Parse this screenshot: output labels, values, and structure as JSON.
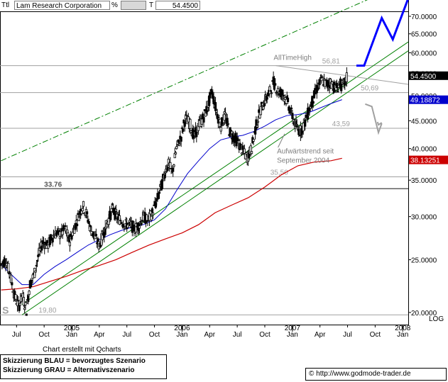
{
  "toolbar": {
    "ttl_label": "Ttl",
    "title": "Lam Research Corporation",
    "percent_label": "%",
    "t_label": "T",
    "last_value": "54.4500"
  },
  "scale_label": "LOG",
  "created_with": "Chart erstellt mit Qcharts",
  "legend": {
    "line1": "Skizzierung BLAU = bevorzugtes Szenario",
    "line2": "Skizzierung GRAU = Alternativszenario"
  },
  "copyright": "© http://www.godmode-trader.de",
  "colors": {
    "candle": "#000000",
    "ma_blue": "#0000cc",
    "ma_red": "#cc0000",
    "trend": "#008000",
    "scenario_blue": "#0000ff",
    "scenario_gray": "#a0a0a0",
    "grid": "#c8c8c8"
  },
  "chart_data": {
    "type": "candlestick",
    "yscale": "log",
    "ylim": [
      19.0,
      75.0
    ],
    "y_ticks": [
      "70.0000",
      "65.0000",
      "60.0000",
      "55.0000",
      "50.0000",
      "45.0000",
      "40.0000",
      "35.0000",
      "30.0000",
      "25.0000",
      "20.0000"
    ],
    "x_ticks": [
      {
        "t": 2004.5,
        "label": "Jul",
        "year": ""
      },
      {
        "t": 2004.75,
        "label": "Oct",
        "year": ""
      },
      {
        "t": 2005.0,
        "label": "Jan",
        "year": "2005"
      },
      {
        "t": 2005.25,
        "label": "Apr",
        "year": ""
      },
      {
        "t": 2005.5,
        "label": "Jul",
        "year": ""
      },
      {
        "t": 2005.75,
        "label": "Oct",
        "year": ""
      },
      {
        "t": 2006.0,
        "label": "Jan",
        "year": "2006"
      },
      {
        "t": 2006.25,
        "label": "Apr",
        "year": ""
      },
      {
        "t": 2006.5,
        "label": "Jul",
        "year": ""
      },
      {
        "t": 2006.75,
        "label": "Oct",
        "year": ""
      },
      {
        "t": 2007.0,
        "label": "Jan",
        "year": "2007"
      },
      {
        "t": 2007.25,
        "label": "Apr",
        "year": ""
      },
      {
        "t": 2007.5,
        "label": "Jul",
        "year": ""
      },
      {
        "t": 2007.75,
        "label": "Oct",
        "year": ""
      },
      {
        "t": 2008.0,
        "label": "Jan",
        "year": "2008"
      }
    ],
    "x_range": [
      2004.35,
      2008.05
    ],
    "price_path": [
      [
        2004.36,
        24.5
      ],
      [
        2004.4,
        25.0
      ],
      [
        2004.44,
        23.5
      ],
      [
        2004.48,
        21.5
      ],
      [
        2004.52,
        20.5
      ],
      [
        2004.55,
        21.5
      ],
      [
        2004.59,
        20.2
      ],
      [
        2004.62,
        22.5
      ],
      [
        2004.66,
        23.5
      ],
      [
        2004.7,
        25.5
      ],
      [
        2004.74,
        27.0
      ],
      [
        2004.78,
        26.5
      ],
      [
        2004.82,
        27.5
      ],
      [
        2004.86,
        28.0
      ],
      [
        2004.9,
        27.8
      ],
      [
        2004.94,
        28.5
      ],
      [
        2004.98,
        27.0
      ],
      [
        2005.02,
        28.5
      ],
      [
        2005.06,
        30.0
      ],
      [
        2005.1,
        31.5
      ],
      [
        2005.13,
        30.5
      ],
      [
        2005.17,
        28.5
      ],
      [
        2005.21,
        27.5
      ],
      [
        2005.25,
        26.5
      ],
      [
        2005.29,
        28.0
      ],
      [
        2005.33,
        29.5
      ],
      [
        2005.37,
        31.0
      ],
      [
        2005.41,
        30.0
      ],
      [
        2005.45,
        29.5
      ],
      [
        2005.49,
        29.0
      ],
      [
        2005.53,
        29.0
      ],
      [
        2005.57,
        28.5
      ],
      [
        2005.61,
        29.0
      ],
      [
        2005.65,
        30.0
      ],
      [
        2005.69,
        29.5
      ],
      [
        2005.73,
        30.5
      ],
      [
        2005.77,
        32.0
      ],
      [
        2005.81,
        34.0
      ],
      [
        2005.85,
        36.5
      ],
      [
        2005.88,
        37.5
      ],
      [
        2005.91,
        36.0
      ],
      [
        2005.95,
        40.0
      ],
      [
        2005.99,
        42.0
      ],
      [
        2006.03,
        45.5
      ],
      [
        2006.07,
        44.5
      ],
      [
        2006.11,
        42.0
      ],
      [
        2006.15,
        44.0
      ],
      [
        2006.19,
        45.5
      ],
      [
        2006.23,
        47.5
      ],
      [
        2006.27,
        51.0
      ],
      [
        2006.31,
        47.0
      ],
      [
        2006.35,
        44.0
      ],
      [
        2006.39,
        46.0
      ],
      [
        2006.43,
        43.0
      ],
      [
        2006.47,
        42.0
      ],
      [
        2006.51,
        41.0
      ],
      [
        2006.55,
        39.5
      ],
      [
        2006.59,
        38.5
      ],
      [
        2006.63,
        40.0
      ],
      [
        2006.67,
        44.0
      ],
      [
        2006.71,
        47.0
      ],
      [
        2006.75,
        49.0
      ],
      [
        2006.79,
        50.5
      ],
      [
        2006.83,
        53.0
      ],
      [
        2006.87,
        51.0
      ],
      [
        2006.91,
        50.5
      ],
      [
        2006.95,
        49.0
      ],
      [
        2006.99,
        46.5
      ],
      [
        2007.03,
        44.0
      ],
      [
        2007.07,
        43.0
      ],
      [
        2007.11,
        44.5
      ],
      [
        2007.15,
        47.0
      ],
      [
        2007.19,
        49.5
      ],
      [
        2007.23,
        52.0
      ],
      [
        2007.27,
        53.5
      ],
      [
        2007.31,
        52.5
      ],
      [
        2007.35,
        53.0
      ],
      [
        2007.39,
        51.5
      ],
      [
        2007.43,
        52.5
      ],
      [
        2007.46,
        52.0
      ],
      [
        2007.5,
        54.45
      ]
    ],
    "ma_blue": [
      [
        2004.36,
        24.5
      ],
      [
        2004.45,
        23.5
      ],
      [
        2004.55,
        22.5
      ],
      [
        2004.65,
        22.5
      ],
      [
        2004.75,
        23.5
      ],
      [
        2004.85,
        24.3
      ],
      [
        2004.95,
        25.0
      ],
      [
        2005.05,
        25.8
      ],
      [
        2005.15,
        26.6
      ],
      [
        2005.25,
        27.2
      ],
      [
        2005.35,
        27.8
      ],
      [
        2005.45,
        28.3
      ],
      [
        2005.55,
        28.7
      ],
      [
        2005.65,
        29.0
      ],
      [
        2005.75,
        29.6
      ],
      [
        2005.85,
        31.0
      ],
      [
        2005.95,
        33.5
      ],
      [
        2006.05,
        36.0
      ],
      [
        2006.15,
        38.0
      ],
      [
        2006.25,
        40.0
      ],
      [
        2006.35,
        41.5
      ],
      [
        2006.45,
        42.0
      ],
      [
        2006.55,
        42.3
      ],
      [
        2006.65,
        43.0
      ],
      [
        2006.75,
        44.0
      ],
      [
        2006.85,
        45.2
      ],
      [
        2006.95,
        46.0
      ],
      [
        2007.05,
        46.2
      ],
      [
        2007.15,
        46.6
      ],
      [
        2007.25,
        47.5
      ],
      [
        2007.35,
        48.4
      ],
      [
        2007.45,
        49.2
      ]
    ],
    "ma_red": [
      [
        2004.36,
        22.0
      ],
      [
        2004.5,
        22.1
      ],
      [
        2004.65,
        22.3
      ],
      [
        2004.8,
        22.8
      ],
      [
        2004.95,
        23.3
      ],
      [
        2005.1,
        23.9
      ],
      [
        2005.25,
        24.4
      ],
      [
        2005.4,
        25.0
      ],
      [
        2005.55,
        25.8
      ],
      [
        2005.7,
        26.6
      ],
      [
        2005.85,
        27.3
      ],
      [
        2006.0,
        28.0
      ],
      [
        2006.15,
        29.0
      ],
      [
        2006.3,
        30.5
      ],
      [
        2006.45,
        31.5
      ],
      [
        2006.6,
        32.5
      ],
      [
        2006.75,
        34.0
      ],
      [
        2006.9,
        35.8
      ],
      [
        2007.05,
        37.2
      ],
      [
        2007.2,
        37.8
      ],
      [
        2007.35,
        38.0
      ],
      [
        2007.45,
        38.4
      ]
    ],
    "horizontal_levels": [
      {
        "value": 56.81,
        "label": "56,81"
      },
      {
        "value": 50.69,
        "label": "50,69"
      },
      {
        "value": 43.59,
        "label": "43,59"
      },
      {
        "value": 35.5,
        "label": "35,50"
      },
      {
        "value": 33.76,
        "label": "33.76"
      },
      {
        "value": 19.8,
        "label": "19,80"
      }
    ],
    "trendlines": [
      {
        "name": "trend_lower_1",
        "from": [
          2004.55,
          19.8
        ],
        "to": [
          2008.05,
          60.5
        ]
      },
      {
        "name": "trend_lower_2",
        "from": [
          2004.55,
          20.7
        ],
        "to": [
          2008.05,
          62.8
        ]
      },
      {
        "name": "trend_upper_dashdot",
        "from": [
          2004.36,
          38.0
        ],
        "to": [
          2008.05,
          81.0
        ]
      },
      {
        "name": "ath_gray_line",
        "from": [
          2006.85,
          56.81
        ],
        "to": [
          2008.05,
          52.5
        ]
      }
    ],
    "scenario_blue": [
      [
        2007.58,
        56.81
      ],
      [
        2007.65,
        56.81
      ],
      [
        2007.81,
        69.5
      ],
      [
        2007.91,
        63.5
      ],
      [
        2008.05,
        75.5
      ]
    ],
    "scenario_gray": [
      [
        2007.66,
        48.3
      ],
      [
        2007.72,
        47.8
      ],
      [
        2007.78,
        42.8
      ],
      [
        2007.81,
        44.5
      ]
    ],
    "right_labels": [
      {
        "value": 54.45,
        "text": "54.4500",
        "bg": "#000000",
        "fg": "#ffffff"
      },
      {
        "value": 49.18872,
        "text": "49.18872",
        "bg": "#0000cc",
        "fg": "#ffffff"
      },
      {
        "value": 38.13251,
        "text": "38.13251",
        "bg": "#cc0000",
        "fg": "#ffffff"
      }
    ],
    "annotations": [
      {
        "text": "AllTimeHigh",
        "t": 2006.83,
        "v": 58.2
      },
      {
        "text": "Aufwärtstrend seit",
        "t": 2006.86,
        "v": 39.2
      },
      {
        "text": "September 2004",
        "t": 2006.86,
        "v": 37.7
      },
      {
        "text": "S",
        "t": 2004.37,
        "v": 19.9
      }
    ]
  }
}
